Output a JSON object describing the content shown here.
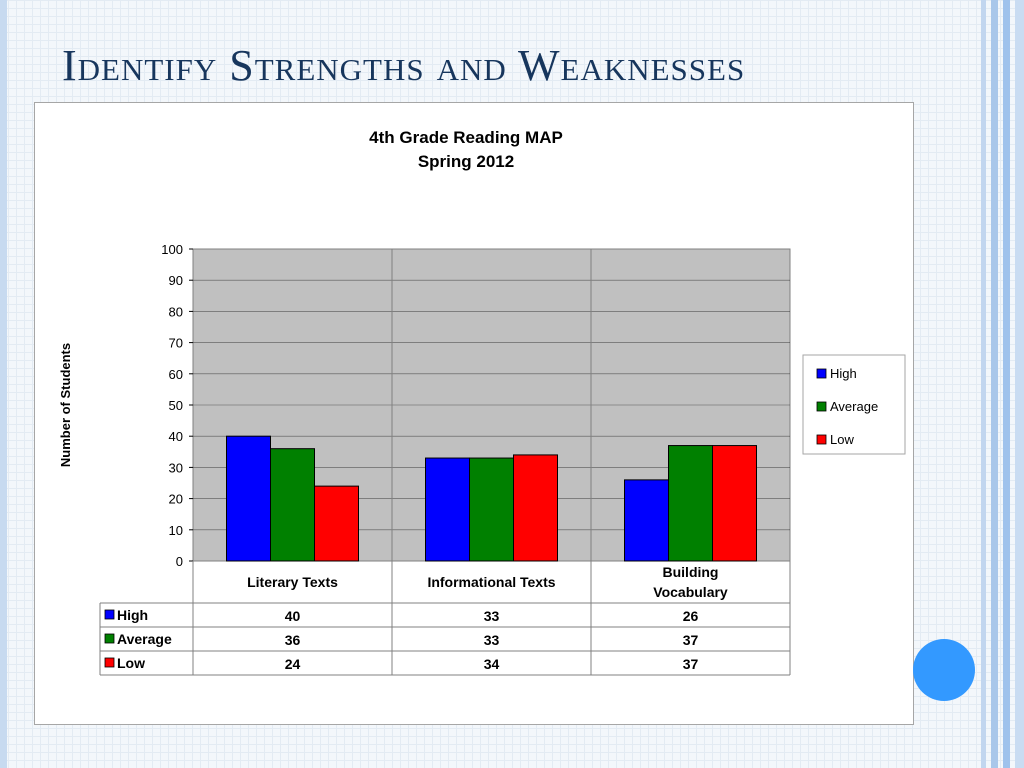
{
  "slide": {
    "title": "Identify Strengths and Weaknesses"
  },
  "chart_data": {
    "type": "bar",
    "title": "4th Grade Reading MAP",
    "subtitle": "Spring 2012",
    "ylabel": "Number of Students",
    "xlabel": "",
    "ylim": [
      0,
      100
    ],
    "yticks": [
      0,
      10,
      20,
      30,
      40,
      50,
      60,
      70,
      80,
      90,
      100
    ],
    "categories": [
      [
        "Literary Texts"
      ],
      [
        "Informational Texts"
      ],
      [
        "Building",
        "Vocabulary"
      ]
    ],
    "series": [
      {
        "name": "High",
        "color": "#0000ff",
        "values": [
          40,
          33,
          26
        ]
      },
      {
        "name": "Average",
        "color": "#008000",
        "values": [
          36,
          33,
          37
        ]
      },
      {
        "name": "Low",
        "color": "#ff0000",
        "values": [
          24,
          34,
          37
        ]
      }
    ],
    "plot_background": "#c0c0c0",
    "grid": true,
    "legend": "right",
    "data_table": true
  }
}
